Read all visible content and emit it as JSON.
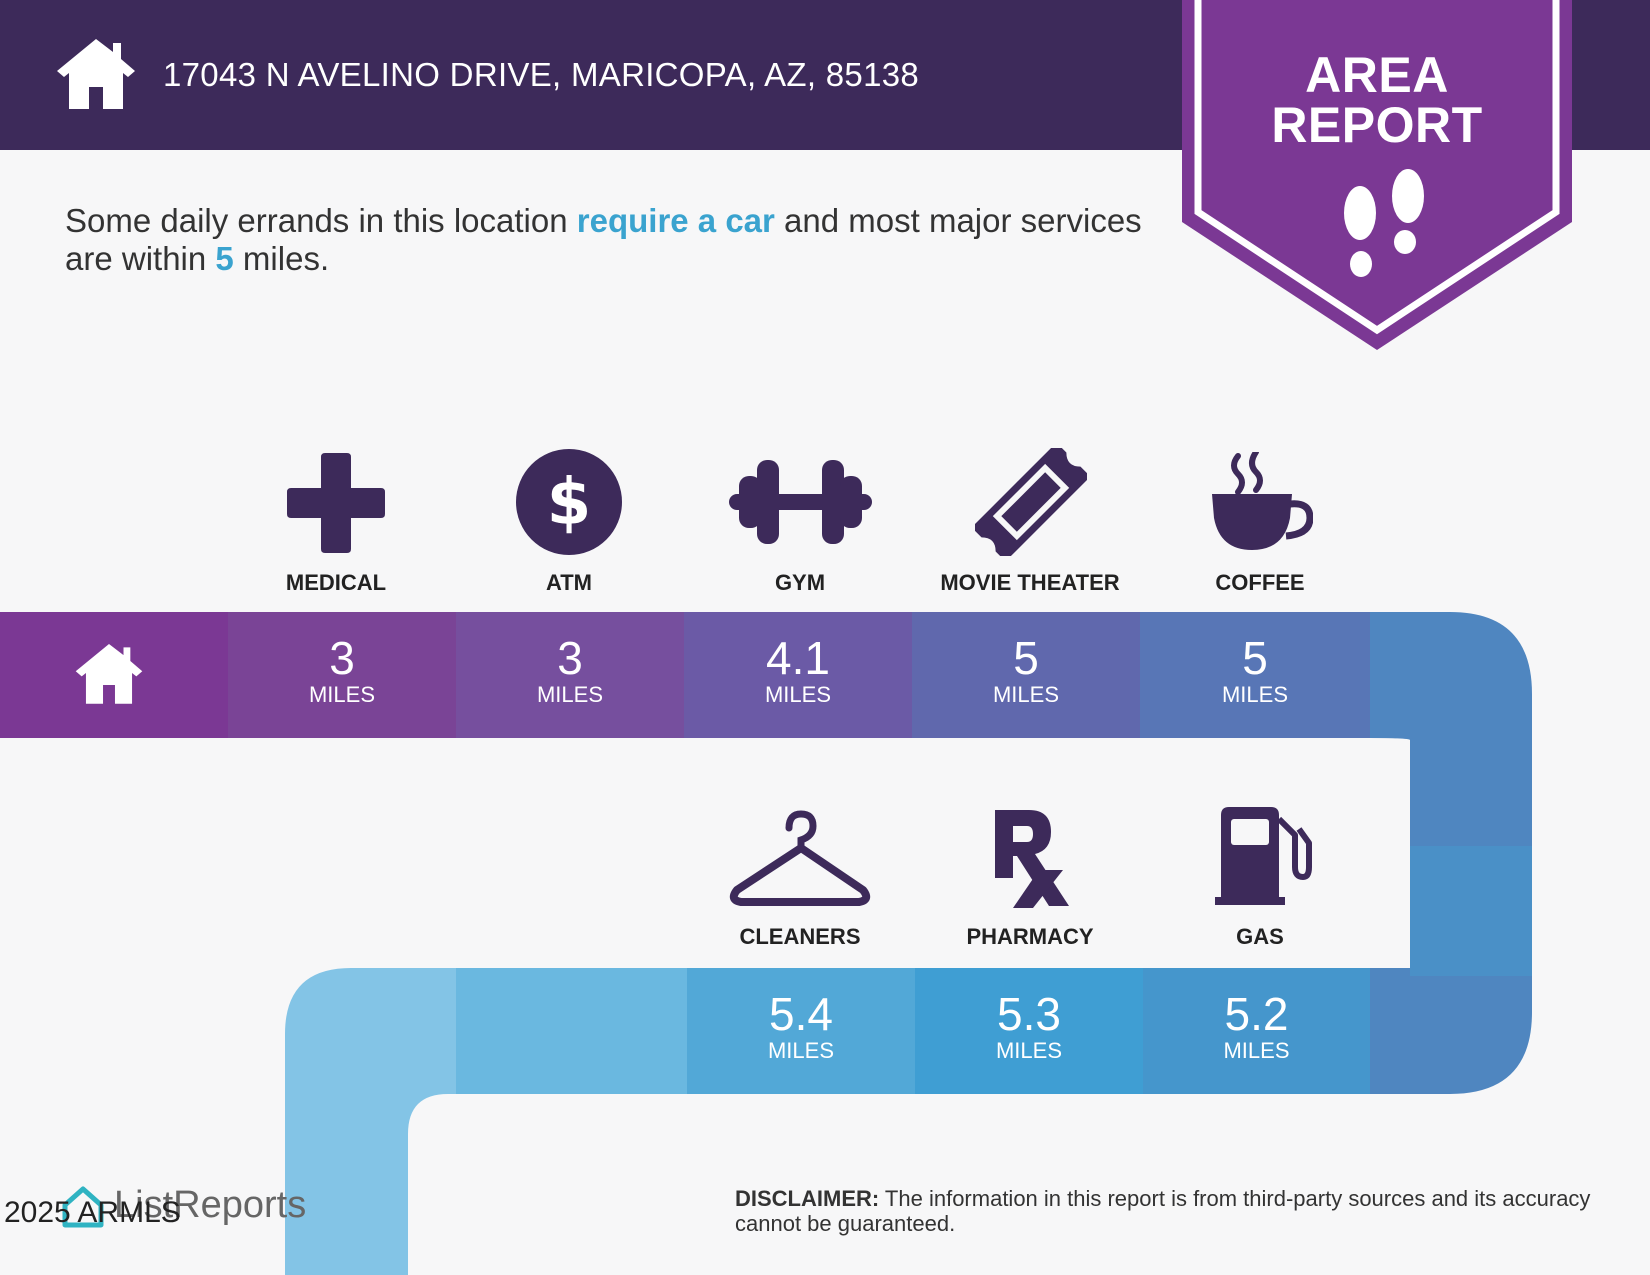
{
  "header": {
    "address": "17043 N AVELINO DRIVE, MARICOPA, AZ, 85138"
  },
  "badge": {
    "line1": "AREA",
    "line2": "REPORT"
  },
  "summary": {
    "part1": "Some daily errands in this location ",
    "highlight1": "require a car",
    "part2": " and most major services are within ",
    "highlight2": "5",
    "part3": " miles."
  },
  "services_row1": [
    {
      "label": "MEDICAL",
      "distance": "3",
      "unit": "MILES",
      "icon": "medical-cross-icon"
    },
    {
      "label": "ATM",
      "distance": "3",
      "unit": "MILES",
      "icon": "dollar-icon"
    },
    {
      "label": "GYM",
      "distance": "4.1",
      "unit": "MILES",
      "icon": "dumbbell-icon"
    },
    {
      "label": "MOVIE THEATER",
      "distance": "5",
      "unit": "MILES",
      "icon": "ticket-icon"
    },
    {
      "label": "COFFEE",
      "distance": "5",
      "unit": "MILES",
      "icon": "coffee-cup-icon"
    }
  ],
  "services_row2": [
    {
      "label": "CLEANERS",
      "distance": "5.4",
      "unit": "MILES",
      "icon": "hanger-icon"
    },
    {
      "label": "PHARMACY",
      "distance": "5.3",
      "unit": "MILES",
      "icon": "rx-icon"
    },
    {
      "label": "GAS",
      "distance": "5.2",
      "unit": "MILES",
      "icon": "gas-pump-icon"
    }
  ],
  "colors": {
    "header": "#3d2a5a",
    "badge": "#7b3894",
    "icon": "#3d2a5a",
    "accent": "#3aa3cf"
  },
  "footer": {
    "brand": "ListReports",
    "copyright": "2025 ARMLS",
    "disclaimer_label": "DISCLAIMER:",
    "disclaimer_text": " The information in this report is from third-party sources and its accuracy cannot be guaranteed."
  }
}
